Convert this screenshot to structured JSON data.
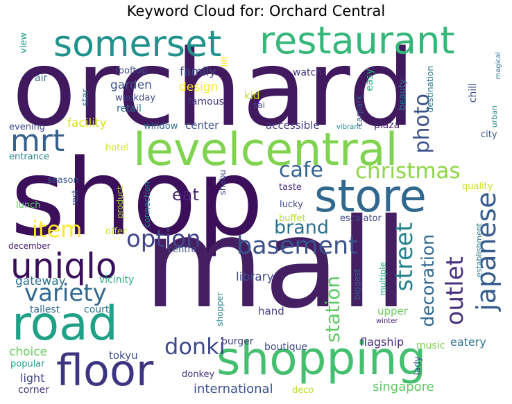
{
  "title": "Keyword Cloud for: Orchard Central",
  "words": [
    {
      "text": "orchard",
      "color": "#40195e"
    },
    {
      "text": "shop",
      "color": "#3b0f59"
    },
    {
      "text": "mall",
      "color": "#442063"
    },
    {
      "text": "levelcentral",
      "color": "#7fd34e"
    },
    {
      "text": "restaurant",
      "color": "#35b779"
    },
    {
      "text": "somerset",
      "color": "#20928c"
    },
    {
      "text": "store",
      "color": "#31688e"
    },
    {
      "text": "shopping",
      "color": "#44bf70"
    },
    {
      "text": "road",
      "color": "#1fa187"
    },
    {
      "text": "floor",
      "color": "#3e3582"
    },
    {
      "text": "mrt",
      "color": "#355f8d"
    },
    {
      "text": "uniqlo",
      "color": "#3a0f5a"
    },
    {
      "text": "christmas",
      "color": "#8ed645"
    },
    {
      "text": "cafe",
      "color": "#33628d"
    },
    {
      "text": "basement",
      "color": "#3b528b"
    },
    {
      "text": "option",
      "color": "#414487"
    },
    {
      "text": "variety",
      "color": "#31688e"
    },
    {
      "text": "item",
      "color": "#fde725"
    },
    {
      "text": "brand",
      "color": "#2c728e"
    },
    {
      "text": "japanese",
      "color": "#365c8d"
    },
    {
      "text": "outlet",
      "color": "#46327e"
    },
    {
      "text": "decoration",
      "color": "#31688e"
    },
    {
      "text": "street",
      "color": "#26828e"
    },
    {
      "text": "station",
      "color": "#5ec962"
    },
    {
      "text": "donki",
      "color": "#3f4889"
    },
    {
      "text": "photo",
      "color": "#3b528b"
    },
    {
      "text": "eat",
      "color": "#482475"
    },
    {
      "text": "gateway",
      "color": "#2d708e"
    },
    {
      "text": "library",
      "color": "#3e4a89"
    },
    {
      "text": "choice",
      "color": "#67cc5c"
    },
    {
      "text": "tokyu",
      "color": "#3e4a89"
    },
    {
      "text": "light",
      "color": "#414487"
    },
    {
      "text": "corner",
      "color": "#46327e"
    },
    {
      "text": "popular",
      "color": "#1fa187"
    },
    {
      "text": "international",
      "color": "#3b528b"
    },
    {
      "text": "singapore",
      "color": "#5ec962"
    },
    {
      "text": "eatery",
      "color": "#2c728e"
    },
    {
      "text": "music",
      "color": "#7ad151"
    },
    {
      "text": "flagship",
      "color": "#482878"
    },
    {
      "text": "burger",
      "color": "#414487"
    },
    {
      "text": "boutique",
      "color": "#3e4a89"
    },
    {
      "text": "donkey",
      "color": "#46337e"
    },
    {
      "text": "deco",
      "color": "#b5de2b"
    },
    {
      "text": "lady",
      "color": "#3e4a89"
    },
    {
      "text": "upper",
      "color": "#6ece58"
    },
    {
      "text": "hand",
      "color": "#433e85"
    },
    {
      "text": "court",
      "color": "#2c738e"
    },
    {
      "text": "tallest",
      "color": "#31688e"
    },
    {
      "text": "vicinity",
      "color": "#2ab07f"
    },
    {
      "text": "december",
      "color": "#481668"
    },
    {
      "text": "centre",
      "color": "#3b528b"
    },
    {
      "text": "offer",
      "color": "#c2df23"
    },
    {
      "text": "shopper",
      "color": "#26828e"
    },
    {
      "text": "biggest",
      "color": "#38598c"
    },
    {
      "text": "multiple",
      "color": "#29af7f"
    },
    {
      "text": "winter",
      "color": "#482878"
    },
    {
      "text": "establishment",
      "color": "#2a788e"
    },
    {
      "text": "escalator",
      "color": "#414487"
    },
    {
      "text": "buffet",
      "color": "#b8de29"
    },
    {
      "text": "lucky",
      "color": "#3e4989"
    },
    {
      "text": "taste",
      "color": "#46307e"
    },
    {
      "text": "quality",
      "color": "#c8e020"
    },
    {
      "text": "lunch",
      "color": "#5ec962"
    },
    {
      "text": "rest",
      "color": "#39568c"
    },
    {
      "text": "product",
      "color": "#a5db36"
    },
    {
      "text": "connection",
      "color": "#26828e"
    },
    {
      "text": "shabu",
      "color": "#3d4e8a"
    },
    {
      "text": "season",
      "color": "#38598c"
    },
    {
      "text": "entrance",
      "color": "#26828e"
    },
    {
      "text": "hotel",
      "color": "#d2e21b"
    },
    {
      "text": "evening",
      "color": "#3e4989"
    },
    {
      "text": "facility",
      "color": "#d8e219"
    },
    {
      "text": "window",
      "color": "#31688e"
    },
    {
      "text": "center",
      "color": "#3b528b"
    },
    {
      "text": "accessible",
      "color": "#433e85"
    },
    {
      "text": "plaza",
      "color": "#482475"
    },
    {
      "text": "vibrant",
      "color": "#24878e"
    },
    {
      "text": "city",
      "color": "#3b528b"
    },
    {
      "text": "destination",
      "color": "#2a768e"
    },
    {
      "text": "urban",
      "color": "#25848e"
    },
    {
      "text": "magical",
      "color": "#2d708e"
    },
    {
      "text": "chill",
      "color": "#3e4989"
    },
    {
      "text": "beauty",
      "color": "#2a768e"
    },
    {
      "text": "carpark",
      "color": "#38598c"
    },
    {
      "text": "easy",
      "color": "#2ab07f"
    },
    {
      "text": "watch",
      "color": "#46337e"
    },
    {
      "text": "sai",
      "color": "#3e4989"
    },
    {
      "text": "kid",
      "color": "#c2df23"
    },
    {
      "text": "famous",
      "color": "#46337e"
    },
    {
      "text": "design",
      "color": "#fde725"
    },
    {
      "text": "family",
      "color": "#3e4989"
    },
    {
      "text": "garden",
      "color": "#3b528b"
    },
    {
      "text": "retail",
      "color": "#31688e"
    },
    {
      "text": "weekday",
      "color": "#3e4989"
    },
    {
      "text": "rooftop",
      "color": "#3e4989"
    },
    {
      "text": "star",
      "color": "#2c728e"
    },
    {
      "text": "air",
      "color": "#31688e"
    },
    {
      "text": "lift",
      "color": "#fde725"
    },
    {
      "text": "view",
      "color": "#1f9a8a"
    }
  ]
}
